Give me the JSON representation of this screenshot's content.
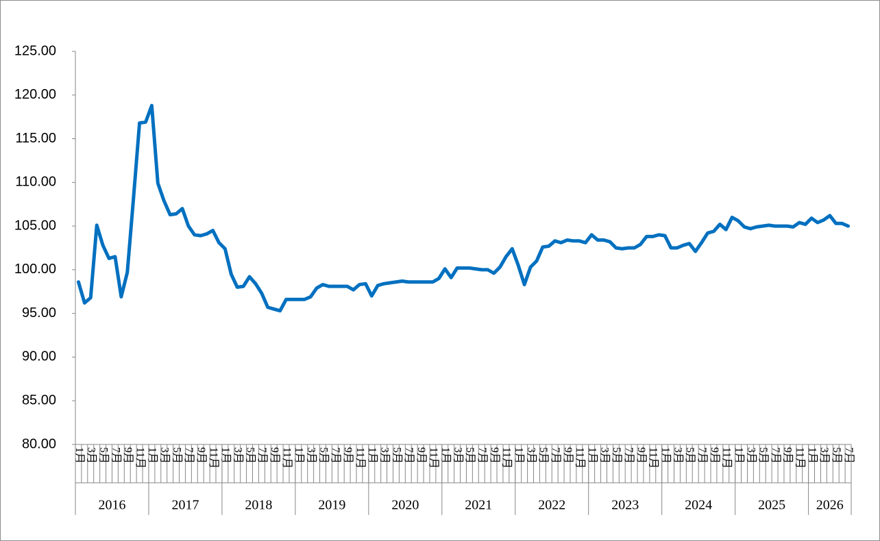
{
  "chart_data": {
    "type": "line",
    "categories": [
      "1月",
      null,
      "3月",
      null,
      "5月",
      null,
      "7月",
      null,
      "9月",
      null,
      "11月",
      null,
      "1月",
      null,
      "3月",
      null,
      "5月",
      null,
      "7月",
      null,
      "9月",
      null,
      "11月",
      null,
      "1月",
      null,
      "3月",
      null,
      "5月",
      null,
      "7月",
      null,
      "9月",
      null,
      "11月",
      null,
      "1月",
      null,
      "3月",
      null,
      "5月",
      null,
      "7月",
      null,
      "9月",
      null,
      "11月",
      null,
      "1月",
      null,
      "3月",
      null,
      "5月",
      null,
      "7月",
      null,
      "9月",
      null,
      "11月",
      null,
      "1月",
      null,
      "3月",
      null,
      "5月",
      null,
      "7月",
      null,
      "9月",
      null,
      "11月",
      null,
      "1月",
      null,
      "3月",
      null,
      "5月",
      null,
      "7月",
      null,
      "9月",
      null,
      "11月",
      null,
      "1月",
      null,
      "3月",
      null,
      "5月",
      null,
      "7月",
      null,
      "9月",
      null,
      "11月",
      null,
      "1月",
      null,
      "3月",
      null,
      "5月",
      null,
      "7月",
      null,
      "9月",
      null,
      "11月",
      null,
      "1月",
      null,
      "3月",
      null,
      "5月",
      null,
      "7月",
      null,
      "9月",
      null,
      "11月",
      null,
      "1月",
      null,
      "3月",
      null,
      "5月",
      null,
      "7月"
    ],
    "x_groups": [
      "2016",
      "2017",
      "2018",
      "2019",
      "2020",
      "2021",
      "2022",
      "2023",
      "2024",
      "2025",
      "2026"
    ],
    "series": [
      {
        "color": "#0070c0",
        "values": [
          98.6,
          96.2,
          96.8,
          105.1,
          102.8,
          101.3,
          101.5,
          96.9,
          99.7,
          108.1,
          116.8,
          116.9,
          118.8,
          109.9,
          107.9,
          106.3,
          106.4,
          107.0,
          105.0,
          104.0,
          103.9,
          104.1,
          104.5,
          103.1,
          102.4,
          99.5,
          98.0,
          98.1,
          99.2,
          98.4,
          97.3,
          95.7,
          95.5,
          95.3,
          96.6,
          96.6,
          96.6,
          96.6,
          96.9,
          97.9,
          98.3,
          98.1,
          98.1,
          98.1,
          98.1,
          97.7,
          98.3,
          98.4,
          97.0,
          98.2,
          98.4,
          98.5,
          98.6,
          98.7,
          98.6,
          98.6,
          98.6,
          98.6,
          98.6,
          99.0,
          100.1,
          99.1,
          100.2,
          100.2,
          100.2,
          100.1,
          100.0,
          100.0,
          99.6,
          100.3,
          101.5,
          102.4,
          100.5,
          98.3,
          100.3,
          101.0,
          102.6,
          102.7,
          103.3,
          103.1,
          103.4,
          103.3,
          103.3,
          103.1,
          104.0,
          103.4,
          103.4,
          103.2,
          102.5,
          102.4,
          102.5,
          102.5,
          102.9,
          103.8,
          103.8,
          104.0,
          103.9,
          102.5,
          102.5,
          102.8,
          103.0,
          102.1,
          103.1,
          104.2,
          104.4,
          105.2,
          104.6,
          106.0,
          105.6,
          104.9,
          104.7,
          104.9,
          105.0,
          105.1,
          105.0,
          105.0,
          105.0,
          104.9,
          105.4,
          105.2,
          105.9,
          105.4,
          105.7,
          106.2,
          105.3,
          105.3,
          105.0
        ]
      }
    ],
    "ylim": [
      80,
      125
    ],
    "yticks": [
      {
        "value": 80,
        "label": "80.00"
      },
      {
        "value": 85,
        "label": "85.00"
      },
      {
        "value": 90,
        "label": "90.00"
      },
      {
        "value": 95,
        "label": "95.00"
      },
      {
        "value": 100,
        "label": "100.00"
      },
      {
        "value": 105,
        "label": "105.00"
      },
      {
        "value": 110,
        "label": "110.00"
      },
      {
        "value": 115,
        "label": "115.00"
      },
      {
        "value": 120,
        "label": "120.00"
      },
      {
        "value": 125,
        "label": "125.00"
      }
    ],
    "grid": false
  }
}
